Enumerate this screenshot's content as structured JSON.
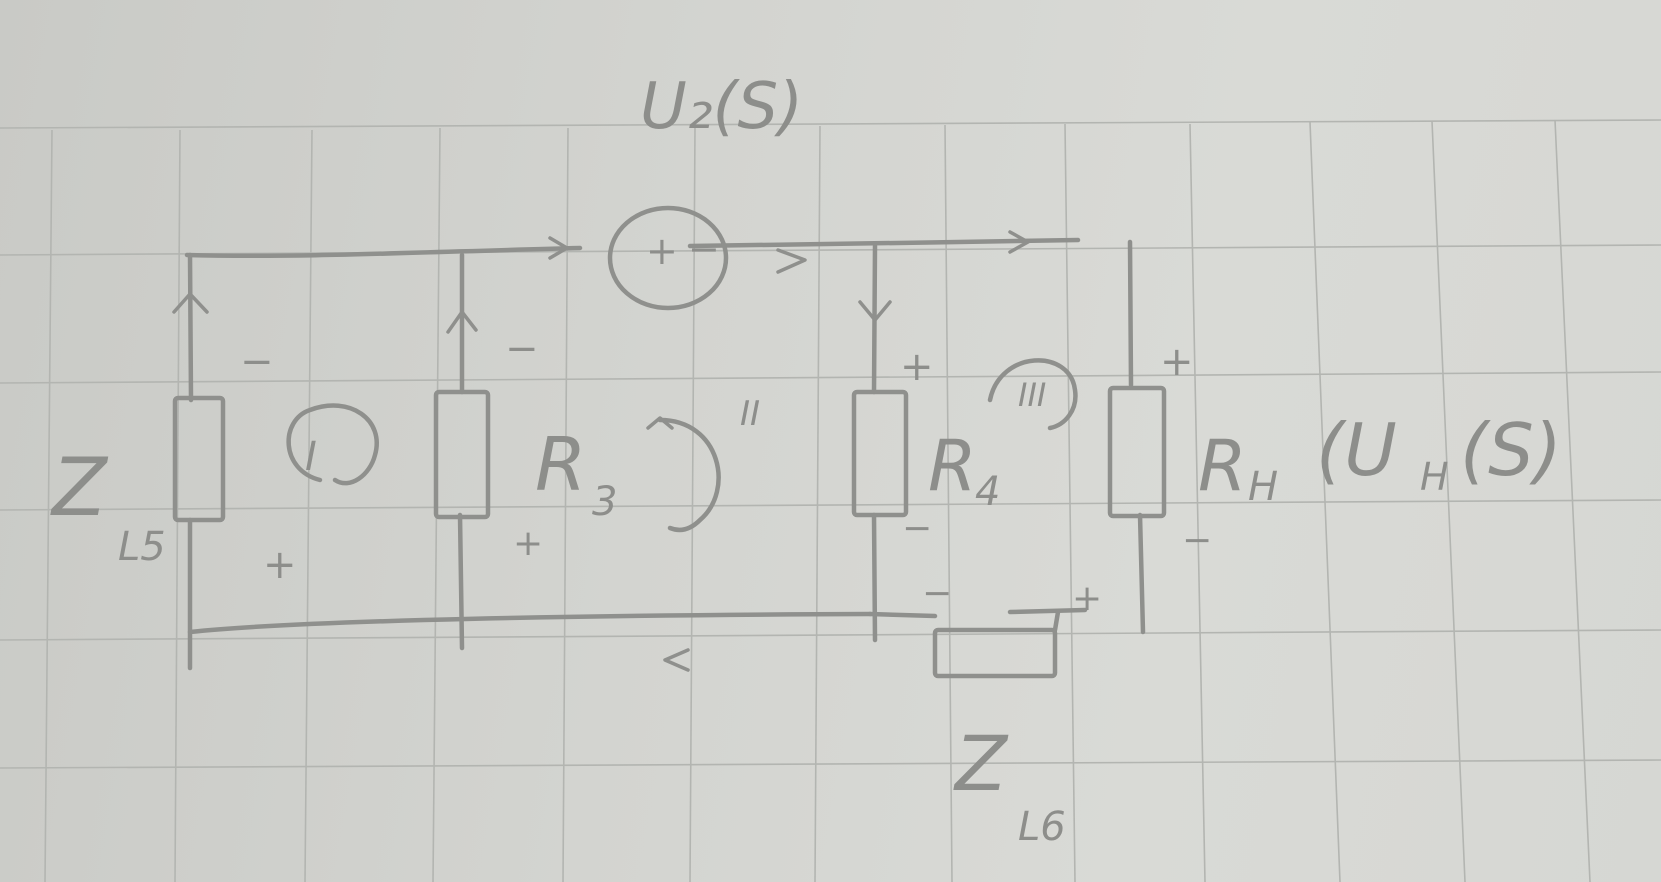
{
  "diagram": {
    "source_label": "U₂(S)",
    "labels": {
      "z_left": "Z",
      "z_left_sub": "L5",
      "r3": "R",
      "r3_sub": "3",
      "r4": "R",
      "r4_sub": "4",
      "rh": "R",
      "rh_sub": "H",
      "uh_open": "(U",
      "uh_sub": "H",
      "uh_close": "(S)",
      "z_bottom": "Z",
      "z_bottom_sub": "L6",
      "loop_1": "I",
      "loop_2": "II",
      "loop_3": "III"
    },
    "signs": {
      "source_plus": "+",
      "source_minus": "−",
      "z5_top": "−",
      "z5_bottom": "+",
      "r3_top": "−",
      "r3_bottom": "+",
      "r4_top": "+",
      "r4_bottom": "−",
      "rh_top": "+",
      "rh_bottom": "−",
      "z6_left": "−",
      "z6_right": "+"
    }
  }
}
